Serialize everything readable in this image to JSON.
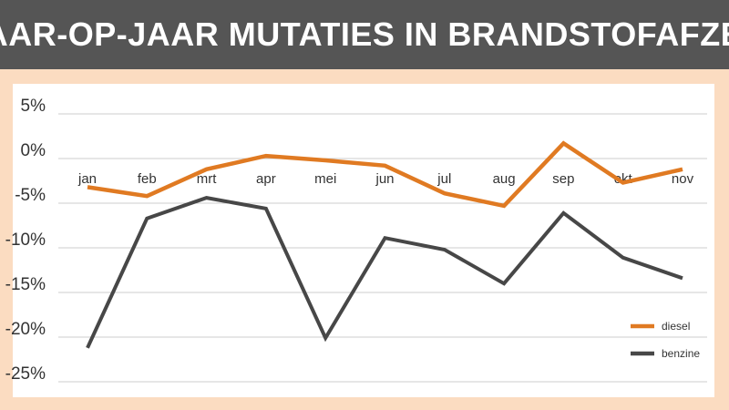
{
  "title": "JAAR-OP-JAAR MUTATIES IN BRANDSTOFAFZET",
  "chart_data": {
    "type": "line",
    "title": "JAAR-OP-JAAR MUTATIES IN BRANDSTOFAFZET",
    "xlabel": "",
    "ylabel": "",
    "categories": [
      "jan",
      "feb",
      "mrt",
      "apr",
      "mei",
      "jun",
      "jul",
      "aug",
      "sep",
      "okt",
      "nov"
    ],
    "yticks": [
      5,
      0,
      -5,
      -10,
      -15,
      -20,
      -25
    ],
    "ytick_labels": [
      "5%",
      "0%",
      "-5%",
      "-10%",
      "-15%",
      "-20%",
      "-25%"
    ],
    "ylim": [
      -25,
      5
    ],
    "grid": true,
    "legend_position": "bottom-right",
    "series": [
      {
        "name": "diesel",
        "color": "#e07a22",
        "values": [
          -3.2,
          -4.2,
          -1.2,
          0.3,
          -0.2,
          -0.8,
          -3.9,
          -5.3,
          1.7,
          -2.7,
          -1.2
        ]
      },
      {
        "name": "benzine",
        "color": "#474747",
        "values": [
          -21.2,
          -6.7,
          -4.4,
          -5.6,
          -20.1,
          -8.9,
          -10.2,
          -14.0,
          -6.1,
          -11.1,
          -13.4
        ]
      }
    ]
  },
  "colors": {
    "background": "#fbdcc1",
    "title_bar": "#555555",
    "grid": "#cccccc"
  }
}
